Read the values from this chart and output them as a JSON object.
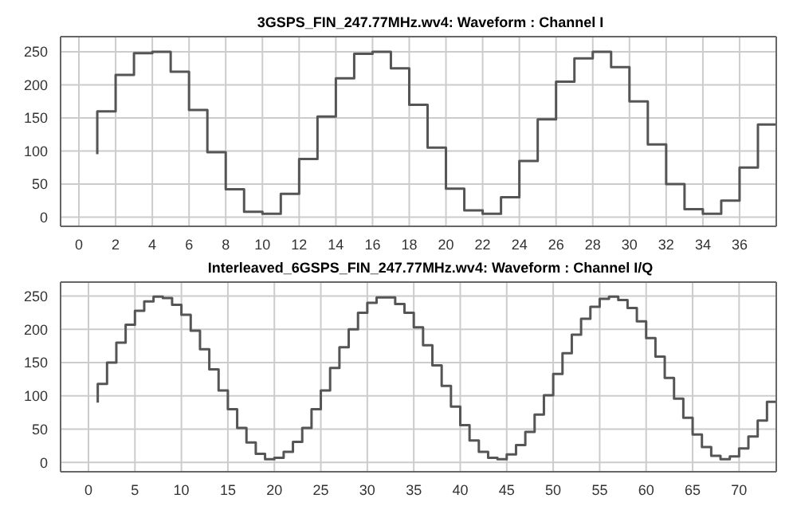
{
  "chart_data": [
    {
      "type": "step",
      "title": "3GSPS_FIN_247.77MHz.wv4: Waveform : Channel I",
      "x": [
        1,
        2,
        3,
        4,
        5,
        6,
        7,
        8,
        9,
        10,
        11,
        12,
        13,
        14,
        15,
        16,
        17,
        18,
        19,
        20,
        21,
        22,
        23,
        24,
        25,
        26,
        27,
        28,
        29,
        30,
        31,
        32,
        33,
        34,
        35,
        36,
        37,
        38
      ],
      "series": [
        {
          "color": "#555555",
          "values": [
            95,
            160,
            215,
            248,
            250,
            220,
            162,
            98,
            42,
            8,
            5,
            35,
            88,
            152,
            210,
            247,
            250,
            225,
            170,
            105,
            43,
            10,
            5,
            30,
            85,
            148,
            205,
            240,
            250,
            227,
            175,
            110,
            50,
            12,
            5,
            25,
            75,
            140
          ]
        }
      ],
      "xlim": [
        -1,
        38
      ],
      "xticks": [
        0,
        2,
        4,
        6,
        8,
        10,
        12,
        14,
        16,
        18,
        20,
        22,
        24,
        26,
        28,
        30,
        32,
        34,
        36
      ],
      "ylim": [
        -14,
        273
      ],
      "yticks": [
        0,
        50,
        100,
        150,
        200,
        250
      ],
      "grid": true
    },
    {
      "type": "step",
      "title": "Interleaved_6GSPS_FIN_247.77MHz.wv4: Waveform : Channel I/Q",
      "x": [
        1,
        2,
        3,
        4,
        5,
        6,
        7,
        8,
        9,
        10,
        11,
        12,
        13,
        14,
        15,
        16,
        17,
        18,
        19,
        20,
        21,
        22,
        23,
        24,
        25,
        26,
        27,
        28,
        29,
        30,
        31,
        32,
        33,
        34,
        35,
        36,
        37,
        38,
        39,
        40,
        41,
        42,
        43,
        44,
        45,
        46,
        47,
        48,
        49,
        50,
        51,
        52,
        53,
        54,
        55,
        56,
        57,
        58,
        59,
        60,
        61,
        62,
        63,
        64,
        65,
        66,
        67,
        68,
        69,
        70,
        71,
        72,
        73,
        74
      ],
      "series": [
        {
          "color": "#555555",
          "values": [
            90,
            118,
            150,
            180,
            207,
            228,
            242,
            249,
            247,
            237,
            222,
            198,
            170,
            140,
            108,
            80,
            52,
            30,
            13,
            5,
            7,
            16,
            31,
            52,
            80,
            108,
            142,
            173,
            200,
            225,
            240,
            248,
            248,
            238,
            225,
            203,
            176,
            146,
            115,
            84,
            56,
            33,
            16,
            7,
            5,
            12,
            26,
            46,
            72,
            101,
            133,
            164,
            192,
            216,
            234,
            246,
            249,
            244,
            232,
            212,
            187,
            159,
            127,
            96,
            67,
            42,
            23,
            10,
            5,
            9,
            21,
            39,
            63,
            91
          ]
        }
      ],
      "xlim": [
        -3,
        74
      ],
      "xticks": [
        0,
        5,
        10,
        15,
        20,
        25,
        30,
        35,
        40,
        45,
        50,
        55,
        60,
        65,
        70
      ],
      "ylim": [
        -14,
        271
      ],
      "yticks": [
        0,
        50,
        100,
        150,
        200,
        250
      ],
      "grid": true
    }
  ]
}
